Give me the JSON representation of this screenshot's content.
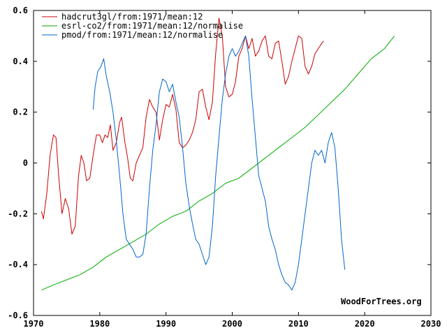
{
  "chart_data": {
    "type": "line",
    "title": "",
    "xlabel": "",
    "ylabel": "",
    "xlim": [
      1970,
      2030
    ],
    "ylim": [
      -0.6,
      0.6
    ],
    "x_ticks": [
      1970,
      1980,
      1990,
      2000,
      2010,
      2020,
      2030
    ],
    "x_tick_labels": [
      "1970",
      "1980",
      "1990",
      "2000",
      "2010",
      "2020",
      "2030"
    ],
    "y_ticks": [
      -0.6,
      -0.4,
      -0.2,
      0,
      0.2,
      0.4,
      0.6
    ],
    "y_tick_labels": [
      "-0.6",
      "-0.4",
      "-0.2",
      "0",
      "0.2",
      "0.4",
      "0.6"
    ],
    "grid": false,
    "legend_position": "top-left",
    "credit": "WoodForTrees.org",
    "series": [
      {
        "name": "hadcrut3gl/from:1971/mean:12",
        "color": "#cc0000",
        "points": [
          [
            1971.2,
            -0.19
          ],
          [
            1971.5,
            -0.22
          ],
          [
            1972.0,
            -0.12
          ],
          [
            1972.5,
            0.03
          ],
          [
            1973.0,
            0.11
          ],
          [
            1973.4,
            0.1
          ],
          [
            1973.8,
            -0.05
          ],
          [
            1974.3,
            -0.2
          ],
          [
            1974.8,
            -0.14
          ],
          [
            1975.3,
            -0.18
          ],
          [
            1975.8,
            -0.28
          ],
          [
            1976.3,
            -0.25
          ],
          [
            1976.8,
            -0.05
          ],
          [
            1977.2,
            0.03
          ],
          [
            1977.6,
            0.0
          ],
          [
            1978.0,
            -0.07
          ],
          [
            1978.5,
            -0.06
          ],
          [
            1979.0,
            0.03
          ],
          [
            1979.5,
            0.11
          ],
          [
            1980.0,
            0.11
          ],
          [
            1980.4,
            0.08
          ],
          [
            1980.8,
            0.11
          ],
          [
            1981.2,
            0.1
          ],
          [
            1981.6,
            0.15
          ],
          [
            1982.0,
            0.05
          ],
          [
            1982.5,
            0.08
          ],
          [
            1983.0,
            0.16
          ],
          [
            1983.3,
            0.18
          ],
          [
            1983.8,
            0.08
          ],
          [
            1984.2,
            0.02
          ],
          [
            1984.6,
            -0.06
          ],
          [
            1985.0,
            -0.07
          ],
          [
            1985.5,
            0.0
          ],
          [
            1986.0,
            0.03
          ],
          [
            1986.5,
            0.06
          ],
          [
            1987.0,
            0.18
          ],
          [
            1987.5,
            0.25
          ],
          [
            1988.0,
            0.22
          ],
          [
            1988.5,
            0.2
          ],
          [
            1989.0,
            0.09
          ],
          [
            1989.5,
            0.17
          ],
          [
            1990.0,
            0.23
          ],
          [
            1990.5,
            0.22
          ],
          [
            1991.0,
            0.27
          ],
          [
            1991.5,
            0.21
          ],
          [
            1992.0,
            0.08
          ],
          [
            1992.5,
            0.06
          ],
          [
            1993.0,
            0.07
          ],
          [
            1993.5,
            0.09
          ],
          [
            1994.0,
            0.12
          ],
          [
            1994.5,
            0.17
          ],
          [
            1995.0,
            0.28
          ],
          [
            1995.5,
            0.29
          ],
          [
            1996.0,
            0.22
          ],
          [
            1996.5,
            0.17
          ],
          [
            1997.0,
            0.24
          ],
          [
            1997.5,
            0.43
          ],
          [
            1998.0,
            0.57
          ],
          [
            1998.5,
            0.5
          ],
          [
            1999.0,
            0.3
          ],
          [
            1999.5,
            0.26
          ],
          [
            2000.0,
            0.27
          ],
          [
            2000.5,
            0.32
          ],
          [
            2001.0,
            0.42
          ],
          [
            2001.5,
            0.45
          ],
          [
            2002.0,
            0.5
          ],
          [
            2002.5,
            0.45
          ],
          [
            2003.0,
            0.49
          ],
          [
            2003.5,
            0.42
          ],
          [
            2004.0,
            0.44
          ],
          [
            2004.5,
            0.48
          ],
          [
            2005.0,
            0.5
          ],
          [
            2005.5,
            0.42
          ],
          [
            2006.0,
            0.41
          ],
          [
            2006.5,
            0.47
          ],
          [
            2007.0,
            0.48
          ],
          [
            2007.5,
            0.4
          ],
          [
            2008.0,
            0.31
          ],
          [
            2008.5,
            0.34
          ],
          [
            2009.0,
            0.4
          ],
          [
            2009.5,
            0.45
          ],
          [
            2010.0,
            0.5
          ],
          [
            2010.5,
            0.49
          ],
          [
            2011.0,
            0.38
          ],
          [
            2011.5,
            0.35
          ],
          [
            2012.0,
            0.38
          ],
          [
            2012.5,
            0.43
          ],
          [
            2013.0,
            0.45
          ],
          [
            2013.5,
            0.47
          ],
          [
            2013.8,
            0.48
          ]
        ]
      },
      {
        "name": "esrl-co2/from:1971/mean:12/normalise",
        "color": "#00aa00",
        "points": [
          [
            1971.2,
            -0.5
          ],
          [
            1973.0,
            -0.48
          ],
          [
            1975.0,
            -0.46
          ],
          [
            1977.0,
            -0.44
          ],
          [
            1979.0,
            -0.41
          ],
          [
            1981.0,
            -0.37
          ],
          [
            1983.0,
            -0.34
          ],
          [
            1985.0,
            -0.31
          ],
          [
            1987.0,
            -0.28
          ],
          [
            1989.0,
            -0.24
          ],
          [
            1991.0,
            -0.21
          ],
          [
            1993.0,
            -0.19
          ],
          [
            1995.0,
            -0.15
          ],
          [
            1997.0,
            -0.12
          ],
          [
            1999.0,
            -0.08
          ],
          [
            2001.0,
            -0.06
          ],
          [
            2003.0,
            -0.02
          ],
          [
            2005.0,
            0.02
          ],
          [
            2007.0,
            0.06
          ],
          [
            2009.0,
            0.1
          ],
          [
            2011.0,
            0.14
          ],
          [
            2013.0,
            0.19
          ],
          [
            2015.0,
            0.24
          ],
          [
            2017.0,
            0.29
          ],
          [
            2019.0,
            0.35
          ],
          [
            2021.0,
            0.41
          ],
          [
            2023.0,
            0.45
          ],
          [
            2024.5,
            0.5
          ]
        ]
      },
      {
        "name": "pmod/from:1971/mean:12/normalise",
        "color": "#0066cc",
        "points": [
          [
            1979.0,
            0.21
          ],
          [
            1979.3,
            0.3
          ],
          [
            1979.7,
            0.36
          ],
          [
            1980.2,
            0.38
          ],
          [
            1980.6,
            0.41
          ],
          [
            1981.0,
            0.34
          ],
          [
            1981.5,
            0.28
          ],
          [
            1982.0,
            0.2
          ],
          [
            1982.5,
            0.09
          ],
          [
            1983.0,
            -0.05
          ],
          [
            1983.5,
            -0.2
          ],
          [
            1984.0,
            -0.3
          ],
          [
            1984.5,
            -0.32
          ],
          [
            1985.0,
            -0.34
          ],
          [
            1985.5,
            -0.37
          ],
          [
            1986.0,
            -0.37
          ],
          [
            1986.5,
            -0.36
          ],
          [
            1987.0,
            -0.28
          ],
          [
            1987.5,
            -0.1
          ],
          [
            1988.0,
            0.05
          ],
          [
            1988.5,
            0.15
          ],
          [
            1989.0,
            0.28
          ],
          [
            1989.5,
            0.33
          ],
          [
            1990.0,
            0.32
          ],
          [
            1990.5,
            0.28
          ],
          [
            1991.0,
            0.31
          ],
          [
            1991.5,
            0.24
          ],
          [
            1992.0,
            0.18
          ],
          [
            1992.5,
            0.06
          ],
          [
            1993.0,
            -0.08
          ],
          [
            1993.5,
            -0.17
          ],
          [
            1994.0,
            -0.24
          ],
          [
            1994.5,
            -0.3
          ],
          [
            1995.0,
            -0.32
          ],
          [
            1995.5,
            -0.36
          ],
          [
            1996.0,
            -0.4
          ],
          [
            1996.5,
            -0.37
          ],
          [
            1997.0,
            -0.25
          ],
          [
            1997.5,
            -0.05
          ],
          [
            1998.0,
            0.1
          ],
          [
            1998.5,
            0.25
          ],
          [
            1999.0,
            0.35
          ],
          [
            1999.5,
            0.42
          ],
          [
            2000.0,
            0.45
          ],
          [
            2000.5,
            0.42
          ],
          [
            2001.0,
            0.44
          ],
          [
            2001.5,
            0.47
          ],
          [
            2002.0,
            0.5
          ],
          [
            2002.5,
            0.42
          ],
          [
            2003.0,
            0.25
          ],
          [
            2003.5,
            0.1
          ],
          [
            2004.0,
            -0.05
          ],
          [
            2004.5,
            -0.1
          ],
          [
            2005.0,
            -0.15
          ],
          [
            2005.5,
            -0.25
          ],
          [
            2006.0,
            -0.3
          ],
          [
            2006.5,
            -0.34
          ],
          [
            2007.0,
            -0.4
          ],
          [
            2007.5,
            -0.44
          ],
          [
            2008.0,
            -0.47
          ],
          [
            2008.5,
            -0.48
          ],
          [
            2009.0,
            -0.5
          ],
          [
            2009.5,
            -0.47
          ],
          [
            2010.0,
            -0.4
          ],
          [
            2010.5,
            -0.3
          ],
          [
            2011.0,
            -0.2
          ],
          [
            2011.5,
            -0.1
          ],
          [
            2012.0,
            0.0
          ],
          [
            2012.5,
            0.05
          ],
          [
            2013.0,
            0.03
          ],
          [
            2013.5,
            0.05
          ],
          [
            2014.0,
            0.0
          ],
          [
            2014.5,
            0.08
          ],
          [
            2015.0,
            0.12
          ],
          [
            2015.5,
            0.06
          ],
          [
            2016.0,
            -0.1
          ],
          [
            2016.5,
            -0.3
          ],
          [
            2017.0,
            -0.42
          ]
        ]
      }
    ]
  }
}
